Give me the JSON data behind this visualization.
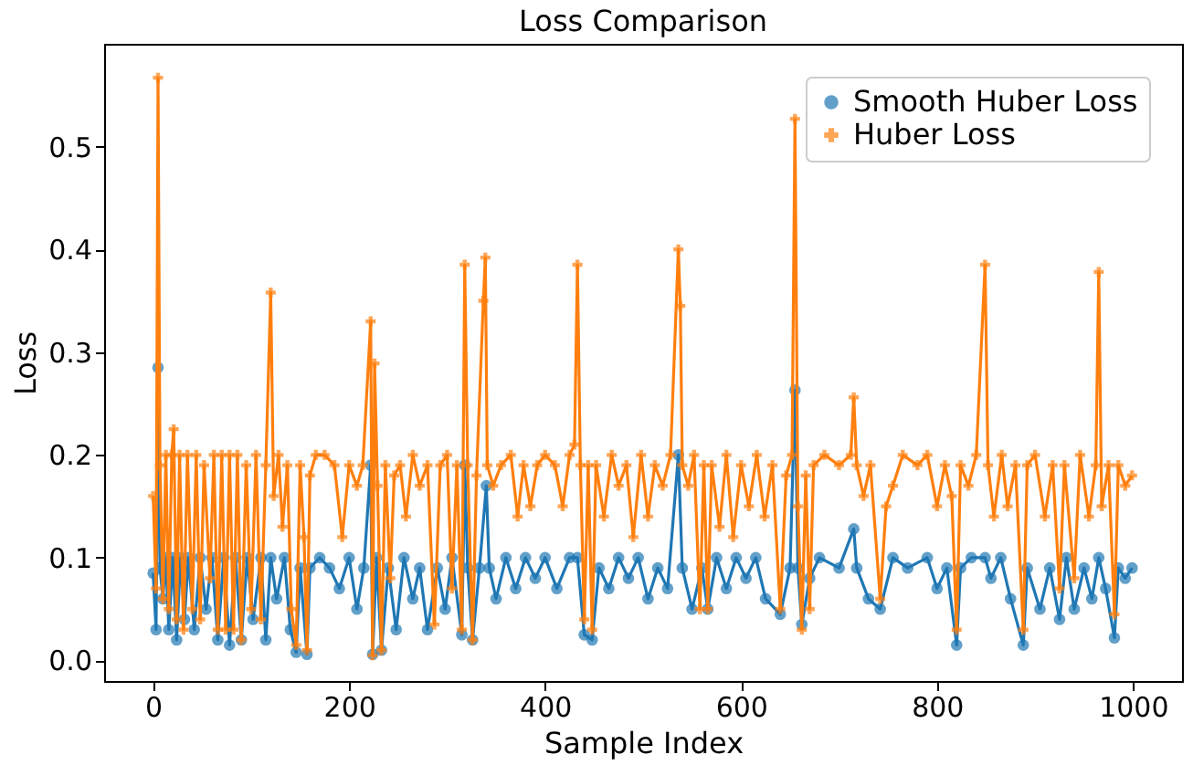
{
  "chart_data": {
    "type": "line",
    "title": "Loss Comparison",
    "xlabel": "Sample Index",
    "ylabel": "Loss",
    "xlim": [
      -50,
      1050
    ],
    "xticks": [
      0,
      200,
      400,
      600,
      800,
      1000
    ],
    "ylim": [
      -0.02,
      0.6
    ],
    "yticks": [
      {
        "value": 0,
        "label": "0.0"
      },
      0.1,
      0.2,
      0.3,
      0.4,
      0.5
    ],
    "grid": false,
    "legend": "top right",
    "series": [
      {
        "name": "Smooth Huber Loss",
        "color": "#1f77b4",
        "marker": "circle",
        "x": [
          0,
          3,
          5,
          7,
          10,
          13,
          16,
          20,
          24,
          28,
          32,
          36,
          42,
          48,
          54,
          60,
          66,
          72,
          78,
          84,
          90,
          96,
          102,
          110,
          115,
          120,
          126,
          134,
          140,
          146,
          150,
          157,
          160,
          170,
          180,
          190,
          200,
          208,
          215,
          222,
          224,
          228,
          233,
          240,
          248,
          256,
          265,
          272,
          280,
          290,
          298,
          305,
          315,
          318,
          321,
          326,
          333,
          340,
          343,
          350,
          360,
          370,
          380,
          390,
          400,
          412,
          425,
          433,
          440,
          448,
          455,
          465,
          475,
          485,
          495,
          505,
          515,
          525,
          536,
          540,
          550,
          560,
          566,
          575,
          585,
          595,
          605,
          615,
          625,
          640,
          650,
          655,
          658,
          662,
          670,
          680,
          700,
          715,
          718,
          730,
          742,
          755,
          770,
          790,
          800,
          810,
          820,
          824,
          835,
          849,
          855,
          865,
          875,
          888,
          892,
          905,
          915,
          925,
          932,
          940,
          950,
          958,
          965,
          972,
          981,
          985,
          992,
          999
        ],
        "values": [
          0.085,
          0.03,
          0.285,
          0.09,
          0.06,
          0.1,
          0.03,
          0.1,
          0.02,
          0.1,
          0.04,
          0.1,
          0.03,
          0.1,
          0.05,
          0.1,
          0.02,
          0.1,
          0.015,
          0.1,
          0.02,
          0.1,
          0.04,
          0.1,
          0.02,
          0.1,
          0.06,
          0.1,
          0.03,
          0.008,
          0.09,
          0.006,
          0.09,
          0.1,
          0.09,
          0.07,
          0.1,
          0.05,
          0.09,
          0.19,
          0.006,
          0.1,
          0.01,
          0.09,
          0.03,
          0.1,
          0.06,
          0.09,
          0.03,
          0.09,
          0.05,
          0.1,
          0.025,
          0.19,
          0.09,
          0.02,
          0.09,
          0.17,
          0.09,
          0.06,
          0.1,
          0.07,
          0.1,
          0.08,
          0.1,
          0.07,
          0.1,
          0.1,
          0.025,
          0.02,
          0.09,
          0.07,
          0.1,
          0.08,
          0.1,
          0.06,
          0.09,
          0.07,
          0.2,
          0.09,
          0.05,
          0.09,
          0.05,
          0.1,
          0.07,
          0.1,
          0.08,
          0.1,
          0.06,
          0.045,
          0.09,
          0.263,
          0.09,
          0.035,
          0.08,
          0.1,
          0.09,
          0.128,
          0.09,
          0.06,
          0.05,
          0.1,
          0.09,
          0.1,
          0.07,
          0.09,
          0.015,
          0.09,
          0.1,
          0.1,
          0.08,
          0.1,
          0.06,
          0.015,
          0.09,
          0.05,
          0.09,
          0.04,
          0.1,
          0.05,
          0.09,
          0.06,
          0.1,
          0.07,
          0.022,
          0.09,
          0.08,
          0.09
        ]
      },
      {
        "name": "Huber Loss",
        "color": "#ff7f0e",
        "marker": "cross",
        "x": [
          0,
          3,
          5,
          7,
          10,
          13,
          16,
          19,
          21,
          24,
          27,
          31,
          35,
          40,
          44,
          48,
          52,
          58,
          62,
          66,
          70,
          74,
          78,
          82,
          86,
          90,
          95,
          100,
          105,
          110,
          115,
          120,
          123,
          128,
          132,
          137,
          141,
          146,
          150,
          154,
          157,
          160,
          166,
          175,
          185,
          193,
          200,
          208,
          214,
          222,
          224,
          226,
          229,
          233,
          237,
          242,
          246,
          252,
          258,
          265,
          272,
          280,
          287,
          293,
          300,
          305,
          310,
          315,
          318,
          321,
          326,
          330,
          337,
          339,
          341,
          347,
          355,
          365,
          372,
          378,
          385,
          392,
          400,
          410,
          418,
          425,
          430,
          433,
          436,
          440,
          444,
          448,
          452,
          460,
          468,
          475,
          483,
          490,
          498,
          505,
          512,
          520,
          528,
          536,
          538,
          540,
          546,
          552,
          558,
          562,
          566,
          570,
          578,
          585,
          592,
          600,
          608,
          616,
          624,
          632,
          640,
          646,
          652,
          655,
          658,
          662,
          666,
          670,
          674,
          685,
          700,
          712,
          715,
          718,
          725,
          732,
          742,
          748,
          755,
          765,
          780,
          790,
          800,
          808,
          815,
          820,
          824,
          832,
          840,
          849,
          852,
          858,
          866,
          872,
          880,
          888,
          892,
          900,
          910,
          918,
          925,
          930,
          940,
          946,
          955,
          962,
          965,
          968,
          975,
          981,
          985,
          992,
          999
        ],
        "values": [
          0.16,
          0.07,
          0.567,
          0.19,
          0.06,
          0.2,
          0.05,
          0.2,
          0.225,
          0.04,
          0.2,
          0.03,
          0.2,
          0.05,
          0.2,
          0.04,
          0.19,
          0.08,
          0.2,
          0.03,
          0.2,
          0.03,
          0.2,
          0.03,
          0.2,
          0.02,
          0.19,
          0.05,
          0.2,
          0.04,
          0.19,
          0.358,
          0.16,
          0.2,
          0.13,
          0.19,
          0.05,
          0.015,
          0.19,
          0.12,
          0.01,
          0.18,
          0.2,
          0.2,
          0.19,
          0.12,
          0.19,
          0.17,
          0.19,
          0.33,
          0.005,
          0.289,
          0.17,
          0.01,
          0.19,
          0.08,
          0.18,
          0.19,
          0.14,
          0.2,
          0.17,
          0.19,
          0.035,
          0.19,
          0.2,
          0.07,
          0.19,
          0.03,
          0.385,
          0.19,
          0.02,
          0.18,
          0.35,
          0.392,
          0.19,
          0.17,
          0.19,
          0.2,
          0.14,
          0.19,
          0.15,
          0.19,
          0.2,
          0.19,
          0.15,
          0.2,
          0.21,
          0.385,
          0.19,
          0.04,
          0.19,
          0.03,
          0.19,
          0.14,
          0.2,
          0.17,
          0.19,
          0.12,
          0.2,
          0.14,
          0.19,
          0.17,
          0.2,
          0.4,
          0.345,
          0.19,
          0.17,
          0.2,
          0.05,
          0.19,
          0.05,
          0.19,
          0.13,
          0.2,
          0.12,
          0.19,
          0.15,
          0.2,
          0.14,
          0.19,
          0.05,
          0.18,
          0.2,
          0.527,
          0.15,
          0.03,
          0.18,
          0.05,
          0.19,
          0.2,
          0.19,
          0.2,
          0.256,
          0.19,
          0.16,
          0.19,
          0.06,
          0.15,
          0.17,
          0.2,
          0.19,
          0.2,
          0.15,
          0.19,
          0.16,
          0.03,
          0.19,
          0.17,
          0.2,
          0.385,
          0.19,
          0.14,
          0.2,
          0.15,
          0.19,
          0.03,
          0.19,
          0.2,
          0.14,
          0.19,
          0.07,
          0.19,
          0.08,
          0.2,
          0.14,
          0.19,
          0.378,
          0.15,
          0.19,
          0.045,
          0.19,
          0.17,
          0.18
        ]
      }
    ]
  }
}
